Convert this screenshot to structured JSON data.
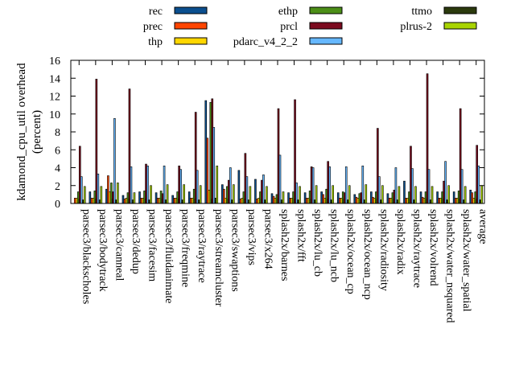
{
  "chart_data": {
    "type": "bar",
    "title": "",
    "xlabel": "",
    "ylabel_line1": "kdamond_cpu_util overhead",
    "ylabel_line2": "(percent)",
    "ylim": [
      0,
      16
    ],
    "yticks": [
      0,
      2,
      4,
      6,
      8,
      10,
      12,
      14,
      16
    ],
    "legend_position": "top",
    "categories": [
      "parsec3/blackscholes",
      "parsec3/bodytrack",
      "parsec3/canneal",
      "parsec3/dedup",
      "parsec3/facesim",
      "parsec3/fluidanimate",
      "parsec3/freqmine",
      "parsec3/raytrace",
      "parsec3/streamcluster",
      "parsec3/swaptions",
      "parsec3/vips",
      "parsec3/x264",
      "splash2x/barnes",
      "splash2x/fft",
      "splash2x/lu_cb",
      "splash2x/lu_ncb",
      "splash2x/ocean_cp",
      "splash2x/ocean_ncp",
      "splash2x/radiosity",
      "splash2x/radix",
      "splash2x/raytrace",
      "splash2x/volrend",
      "splash2x/water_nsquared",
      "splash2x/water_spatial",
      "average"
    ],
    "series": [
      {
        "name": "rec",
        "color": "#0b4f8f",
        "values": [
          0.0,
          1.3,
          1.6,
          0.9,
          1.3,
          1.2,
          0.9,
          1.3,
          11.5,
          2.1,
          3.7,
          2.7,
          1.1,
          1.2,
          1.2,
          1.3,
          1.2,
          1.0,
          1.3,
          1.1,
          2.5,
          1.3,
          1.3,
          1.3,
          1.5
        ]
      },
      {
        "name": "prec",
        "color": "#ff4500",
        "values": [
          0.6,
          0.6,
          3.1,
          0.5,
          0.6,
          0.6,
          0.6,
          0.6,
          7.3,
          1.6,
          0.5,
          0.5,
          0.8,
          0.6,
          0.6,
          1.0,
          0.6,
          0.7,
          0.7,
          0.6,
          0.6,
          0.7,
          0.6,
          0.6,
          1.2
        ]
      },
      {
        "name": "thp",
        "color": "#ffd700",
        "values": [
          0.6,
          0.6,
          1.3,
          0.6,
          0.6,
          0.6,
          0.6,
          0.6,
          1.5,
          0.6,
          0.6,
          0.6,
          0.6,
          0.6,
          0.6,
          0.6,
          0.6,
          0.6,
          0.6,
          0.6,
          0.6,
          0.6,
          0.6,
          0.6,
          0.6
        ]
      },
      {
        "name": "ethp",
        "color": "#4c8f17",
        "values": [
          1.3,
          1.4,
          2.3,
          1.2,
          1.4,
          1.4,
          1.3,
          1.6,
          11.3,
          1.9,
          1.3,
          1.3,
          1.0,
          1.3,
          1.4,
          1.6,
          1.3,
          1.1,
          1.3,
          1.2,
          1.3,
          1.3,
          1.3,
          1.4,
          1.3
        ]
      },
      {
        "name": "prcl",
        "color": "#7b0a1e",
        "values": [
          6.4,
          13.9,
          1.3,
          12.8,
          4.4,
          1.1,
          4.2,
          10.2,
          11.7,
          2.6,
          5.6,
          2.6,
          10.6,
          11.6,
          4.1,
          4.7,
          1.2,
          1.2,
          8.4,
          1.5,
          6.4,
          14.5,
          2.5,
          10.6,
          6.5
        ]
      },
      {
        "name": "pdarc_v4_2_2",
        "color": "#66b8ff",
        "values": [
          3.0,
          3.3,
          9.5,
          4.1,
          4.2,
          4.2,
          3.8,
          3.7,
          8.5,
          4.0,
          3.0,
          3.2,
          5.4,
          2.3,
          4.0,
          4.1,
          4.1,
          4.2,
          3.0,
          4.0,
          3.9,
          3.8,
          4.7,
          3.8,
          4.2
        ]
      },
      {
        "name": "ttmo",
        "color": "#2b3a0d",
        "values": [
          0.4,
          0.4,
          0.4,
          0.4,
          0.4,
          0.4,
          0.4,
          0.4,
          0.6,
          0.4,
          0.4,
          0.4,
          0.4,
          0.4,
          0.4,
          0.4,
          0.4,
          0.4,
          0.4,
          0.4,
          0.4,
          0.4,
          0.4,
          0.4,
          0.4
        ]
      },
      {
        "name": "plrus-2",
        "color": "#a8d400",
        "values": [
          1.9,
          1.9,
          2.3,
          1.2,
          2.0,
          2.1,
          2.1,
          2.0,
          4.2,
          2.1,
          1.9,
          1.9,
          1.3,
          1.9,
          2.0,
          2.0,
          2.0,
          2.1,
          2.0,
          1.9,
          1.9,
          1.9,
          2.0,
          1.9,
          2.0
        ]
      }
    ]
  }
}
